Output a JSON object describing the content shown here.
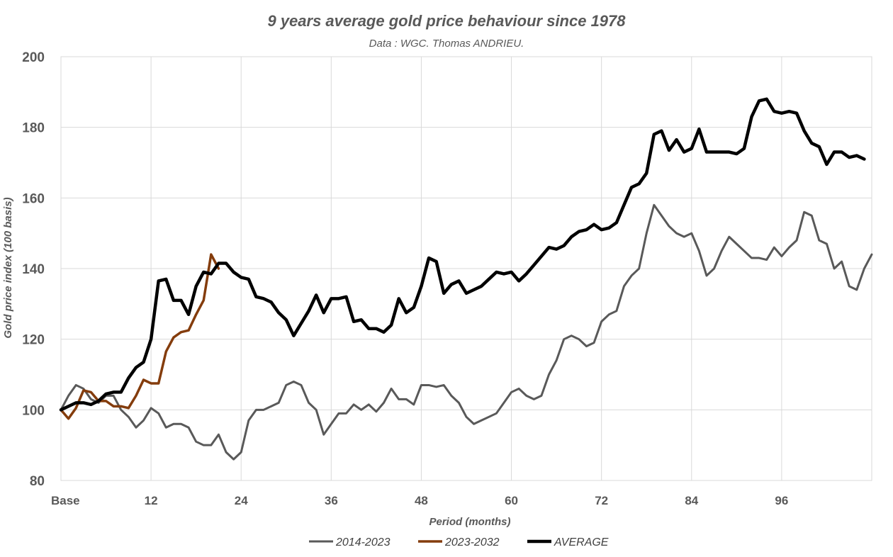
{
  "chart_data": {
    "type": "line",
    "title": "9 years average gold price behaviour since 1978",
    "subtitle": "Data : WGC. Thomas ANDRIEU.",
    "xlabel": "Period (months)",
    "ylabel": "Gold price index (100 basis)",
    "xlim": [
      0,
      108
    ],
    "ylim": [
      80,
      200
    ],
    "yticks": [
      "80",
      "100",
      "120",
      "140",
      "160",
      "180",
      "200"
    ],
    "xticks": [
      {
        "label": "Base",
        "x": 0
      },
      {
        "label": "12",
        "x": 12
      },
      {
        "label": "24",
        "x": 24
      },
      {
        "label": "36",
        "x": 36
      },
      {
        "label": "48",
        "x": 48
      },
      {
        "label": "60",
        "x": 60
      },
      {
        "label": "72",
        "x": 72
      },
      {
        "label": "84",
        "x": 84
      },
      {
        "label": "96",
        "x": 96
      }
    ],
    "grid": true,
    "legend_position": "bottom",
    "series": [
      {
        "name": "2014-2023",
        "color": "#595959",
        "values": [
          100,
          104,
          107,
          106,
          103,
          102,
          104,
          104,
          100,
          98,
          95,
          97,
          100.5,
          99,
          95,
          96,
          96,
          95,
          91,
          90,
          90,
          93,
          88,
          86,
          88,
          97,
          100,
          100,
          101,
          102,
          107,
          108,
          107,
          102,
          100,
          93,
          96,
          99,
          99,
          101.5,
          100,
          101.5,
          99.5,
          102,
          106,
          103,
          103,
          101.5,
          107,
          107,
          106.5,
          107,
          104,
          102,
          98,
          96,
          97,
          98,
          99,
          102,
          105,
          106,
          104,
          103,
          104,
          110,
          114,
          120,
          121,
          120,
          118,
          119,
          125,
          127,
          128,
          135,
          138,
          140,
          150,
          158,
          155,
          152,
          150,
          149,
          150,
          145,
          138,
          140,
          145,
          149,
          147,
          145,
          143,
          143,
          142.5,
          146,
          143.5,
          146,
          148,
          156,
          155,
          148,
          147,
          140,
          142,
          135,
          134,
          140,
          144
        ]
      },
      {
        "name": "2023-2032",
        "color": "#843c0c",
        "values": [
          100,
          97.5,
          100.5,
          105.5,
          105,
          102.5,
          102.5,
          101,
          101,
          100.5,
          104,
          108.5,
          107.5,
          107.5,
          116.5,
          120.5,
          122,
          122.5,
          127,
          131,
          144,
          140
        ]
      },
      {
        "name": "AVERAGE",
        "color": "#000000",
        "values": [
          100,
          101,
          102,
          102,
          101.5,
          102.5,
          104.5,
          105,
          105,
          109,
          112,
          113.5,
          120,
          136.5,
          137,
          131,
          131,
          127,
          135,
          139,
          138.5,
          141.5,
          141.5,
          139,
          137.5,
          137,
          132,
          131.5,
          130.5,
          127.5,
          125.5,
          121,
          124.5,
          128,
          132.5,
          127.5,
          131.5,
          131.5,
          132,
          125,
          125.5,
          123,
          123,
          122,
          124,
          131.5,
          127.5,
          129,
          135,
          143,
          142,
          133,
          135.5,
          136.5,
          133,
          134,
          135,
          137,
          139,
          138.5,
          139,
          136.5,
          138.5,
          141,
          143.5,
          146,
          145.5,
          146.5,
          149,
          150.5,
          151,
          152.5,
          151,
          151.5,
          153,
          158,
          163,
          164,
          167,
          178,
          179,
          173.5,
          176.5,
          173,
          174,
          179.5,
          173,
          173,
          173,
          173,
          172.5,
          174,
          183,
          187.5,
          188,
          184.5,
          184,
          184.5,
          184,
          179,
          175.5,
          174.5,
          169.5,
          173,
          173,
          171.5,
          172,
          171
        ]
      }
    ]
  }
}
